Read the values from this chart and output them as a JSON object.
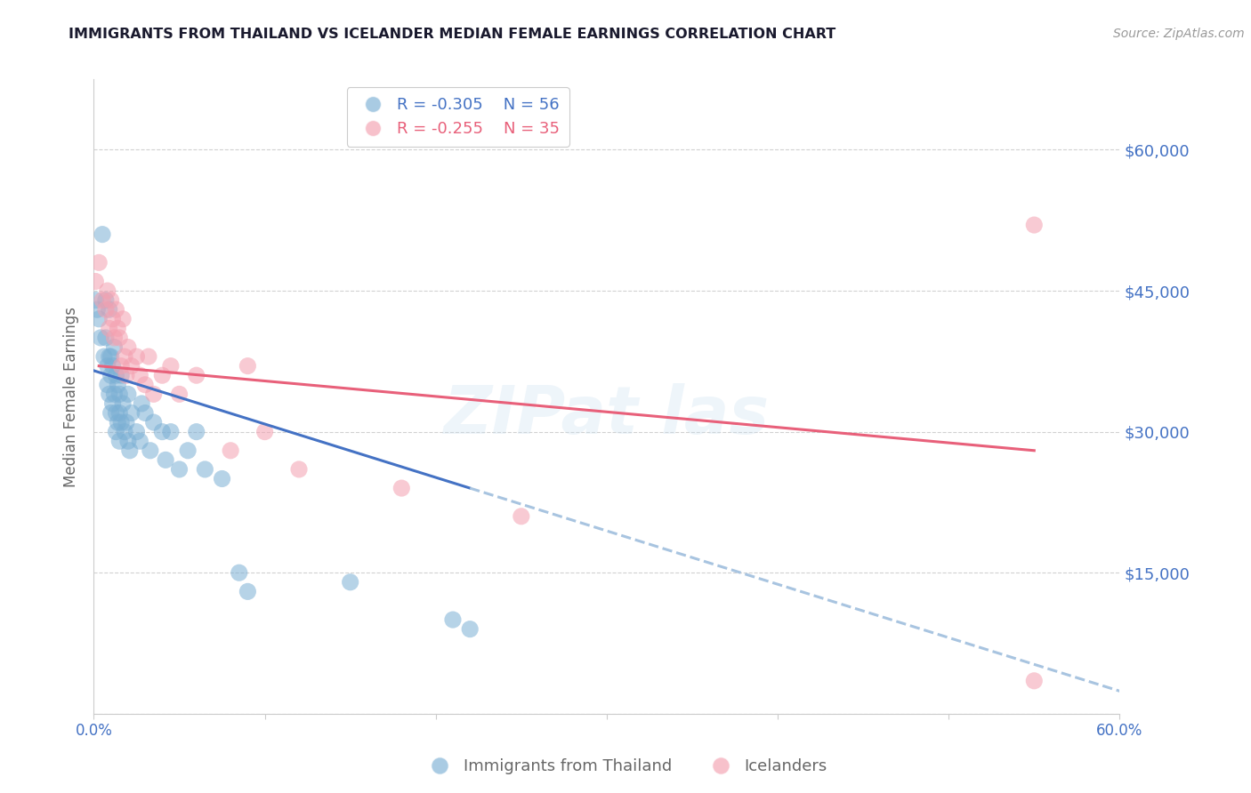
{
  "title": "IMMIGRANTS FROM THAILAND VS ICELANDER MEDIAN FEMALE EARNINGS CORRELATION CHART",
  "source": "Source: ZipAtlas.com",
  "ylabel": "Median Female Earnings",
  "xlim": [
    0.0,
    0.6
  ],
  "ylim": [
    0,
    67500
  ],
  "yticks": [
    0,
    15000,
    30000,
    45000,
    60000
  ],
  "ytick_labels": [
    "",
    "$15,000",
    "$30,000",
    "$45,000",
    "$60,000"
  ],
  "xticks": [
    0.0,
    0.1,
    0.2,
    0.3,
    0.4,
    0.5,
    0.6
  ],
  "xtick_labels": [
    "0.0%",
    "",
    "",
    "",
    "",
    "",
    "60.0%"
  ],
  "background_color": "#ffffff",
  "grid_color": "#cccccc",
  "title_color": "#1a1a2e",
  "axis_label_color": "#666666",
  "tick_label_color": "#4472c4",
  "legend_r1": "R = -0.305",
  "legend_n1": "N = 56",
  "legend_r2": "R = -0.255",
  "legend_n2": "N = 35",
  "series1_color": "#7bafd4",
  "series2_color": "#f4a0b0",
  "trendline1_color": "#4472c4",
  "trendline2_color": "#e8607a",
  "trendline_dashed_color": "#a8c4e0",
  "trendline1_x0": 0.0,
  "trendline1_y0": 36500,
  "trendline1_x1": 0.22,
  "trendline1_y1": 24000,
  "trendline1_xdash_end": 0.6,
  "trendline2_x0": 0.003,
  "trendline2_y0": 37000,
  "trendline2_x1": 0.55,
  "trendline2_y1": 28000,
  "series1_x": [
    0.001,
    0.002,
    0.003,
    0.004,
    0.005,
    0.006,
    0.007,
    0.007,
    0.008,
    0.008,
    0.009,
    0.009,
    0.009,
    0.01,
    0.01,
    0.01,
    0.011,
    0.011,
    0.012,
    0.012,
    0.013,
    0.013,
    0.013,
    0.014,
    0.014,
    0.015,
    0.015,
    0.015,
    0.016,
    0.016,
    0.017,
    0.018,
    0.019,
    0.02,
    0.02,
    0.021,
    0.022,
    0.025,
    0.027,
    0.028,
    0.03,
    0.033,
    0.035,
    0.04,
    0.042,
    0.045,
    0.05,
    0.055,
    0.06,
    0.065,
    0.075,
    0.085,
    0.09,
    0.15,
    0.21,
    0.22
  ],
  "series1_y": [
    44000,
    43000,
    42000,
    40000,
    51000,
    38000,
    44000,
    40000,
    37000,
    35000,
    38000,
    34000,
    43000,
    38000,
    36000,
    32000,
    37000,
    33000,
    39000,
    34000,
    36000,
    32000,
    30000,
    35000,
    31000,
    34000,
    32000,
    29000,
    36000,
    31000,
    33000,
    30000,
    31000,
    29000,
    34000,
    28000,
    32000,
    30000,
    29000,
    33000,
    32000,
    28000,
    31000,
    30000,
    27000,
    30000,
    26000,
    28000,
    30000,
    26000,
    25000,
    15000,
    13000,
    14000,
    10000,
    9000
  ],
  "series2_x": [
    0.001,
    0.003,
    0.005,
    0.007,
    0.008,
    0.009,
    0.01,
    0.011,
    0.012,
    0.013,
    0.014,
    0.015,
    0.016,
    0.017,
    0.018,
    0.019,
    0.02,
    0.022,
    0.025,
    0.027,
    0.03,
    0.032,
    0.035,
    0.04,
    0.045,
    0.05,
    0.06,
    0.08,
    0.09,
    0.1,
    0.12,
    0.18,
    0.25,
    0.55,
    0.55
  ],
  "series2_y": [
    46000,
    48000,
    44000,
    43000,
    45000,
    41000,
    44000,
    42000,
    40000,
    43000,
    41000,
    40000,
    37000,
    42000,
    38000,
    36000,
    39000,
    37000,
    38000,
    36000,
    35000,
    38000,
    34000,
    36000,
    37000,
    34000,
    36000,
    28000,
    37000,
    30000,
    26000,
    24000,
    21000,
    3500,
    52000
  ]
}
